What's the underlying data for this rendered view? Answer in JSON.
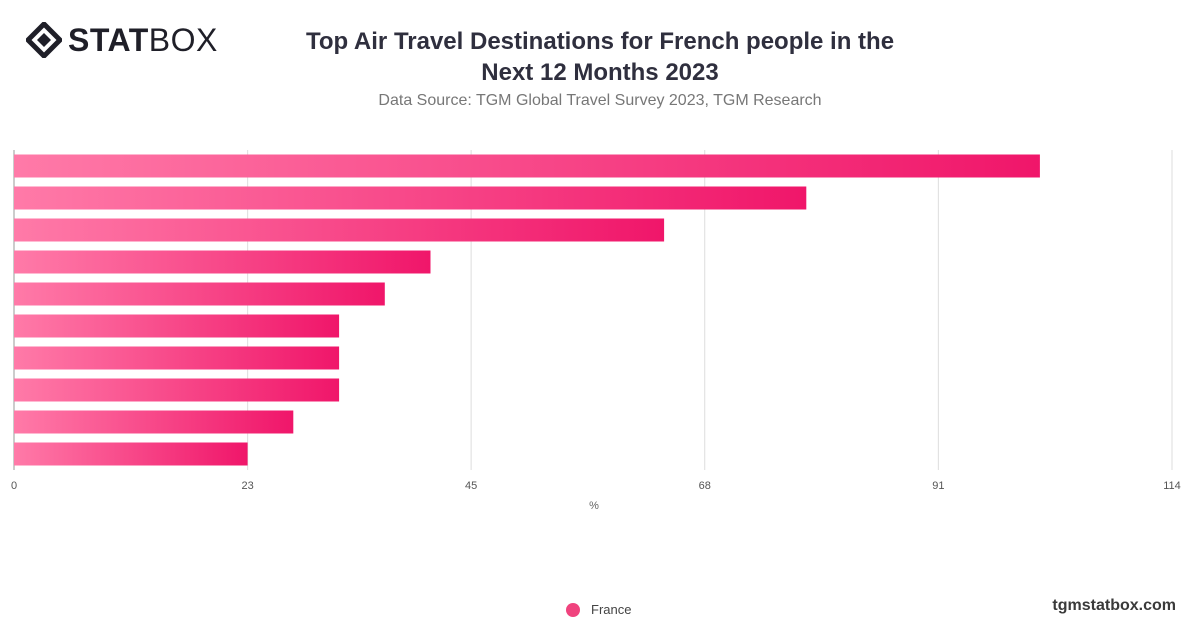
{
  "logo": {
    "bold": "STAT",
    "regular": "BOX",
    "icon": "statbox-diamond-logo-icon"
  },
  "title_lines": [
    "Top Air Travel Destinations for French people in the",
    "Next 12 Months 2023"
  ],
  "subtitle": "Data Source: TGM Global Travel Survey 2023, TGM Research",
  "legend": {
    "label": "France",
    "color": "#f0437e"
  },
  "brand": "tgmstatbox.com",
  "colors": {
    "bar_start": "#ff7aa8",
    "bar_end": "#f0166a",
    "grid": "#dddddd"
  },
  "chart_data": {
    "type": "bar",
    "orientation": "horizontal",
    "title": "Top Air Travel Destinations for French people in the Next 12 Months 2023",
    "xlabel": "%",
    "ylabel": "",
    "xlim": [
      0,
      114
    ],
    "xticks": [
      0,
      23,
      45,
      68,
      91,
      114
    ],
    "grid": true,
    "legend_position": "bottom",
    "series": [
      {
        "name": "France",
        "values": [
          101,
          78,
          64,
          41,
          36.5,
          32,
          32,
          32,
          27.5,
          23
        ]
      }
    ]
  }
}
